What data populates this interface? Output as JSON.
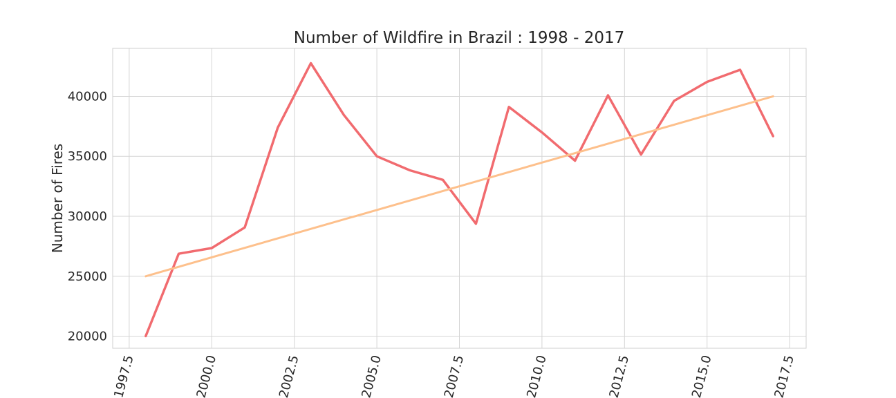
{
  "chart_data": {
    "type": "line",
    "title": "Number of Wildfire in Brazil : 1998 - 2017",
    "xlabel": "",
    "ylabel": "Number of Fires",
    "xlim": [
      1997.0,
      2018.0
    ],
    "ylim": [
      19000,
      44000
    ],
    "x_ticks": [
      1997.5,
      2000.0,
      2002.5,
      2005.0,
      2007.5,
      2010.0,
      2012.5,
      2015.0,
      2017.5
    ],
    "x_tick_labels": [
      "1997.5",
      "2000.0",
      "2002.5",
      "2005.0",
      "2007.5",
      "2010.0",
      "2012.5",
      "2015.0",
      "2017.5"
    ],
    "y_ticks": [
      20000,
      25000,
      30000,
      35000,
      40000
    ],
    "y_tick_labels": [
      "20000",
      "25000",
      "30000",
      "35000",
      "40000"
    ],
    "grid": true,
    "series": [
      {
        "color": "#f16b6f",
        "x": [
          1998,
          1999,
          2000,
          2001,
          2002,
          2003,
          2004,
          2005,
          2006,
          2007,
          2008,
          2009,
          2010,
          2011,
          2012,
          2013,
          2014,
          2015,
          2016,
          2017
        ],
        "values": [
          20013,
          26882,
          27351,
          29072,
          37391,
          42761,
          38451,
          35004,
          33834,
          33038,
          29379,
          39117,
          36996,
          34633,
          40084,
          35149,
          39620,
          41208,
          42212,
          36685
        ]
      },
      {
        "color": "#fdc08c",
        "x": [
          1998,
          2017
        ],
        "values": [
          25000,
          40000
        ]
      }
    ]
  }
}
